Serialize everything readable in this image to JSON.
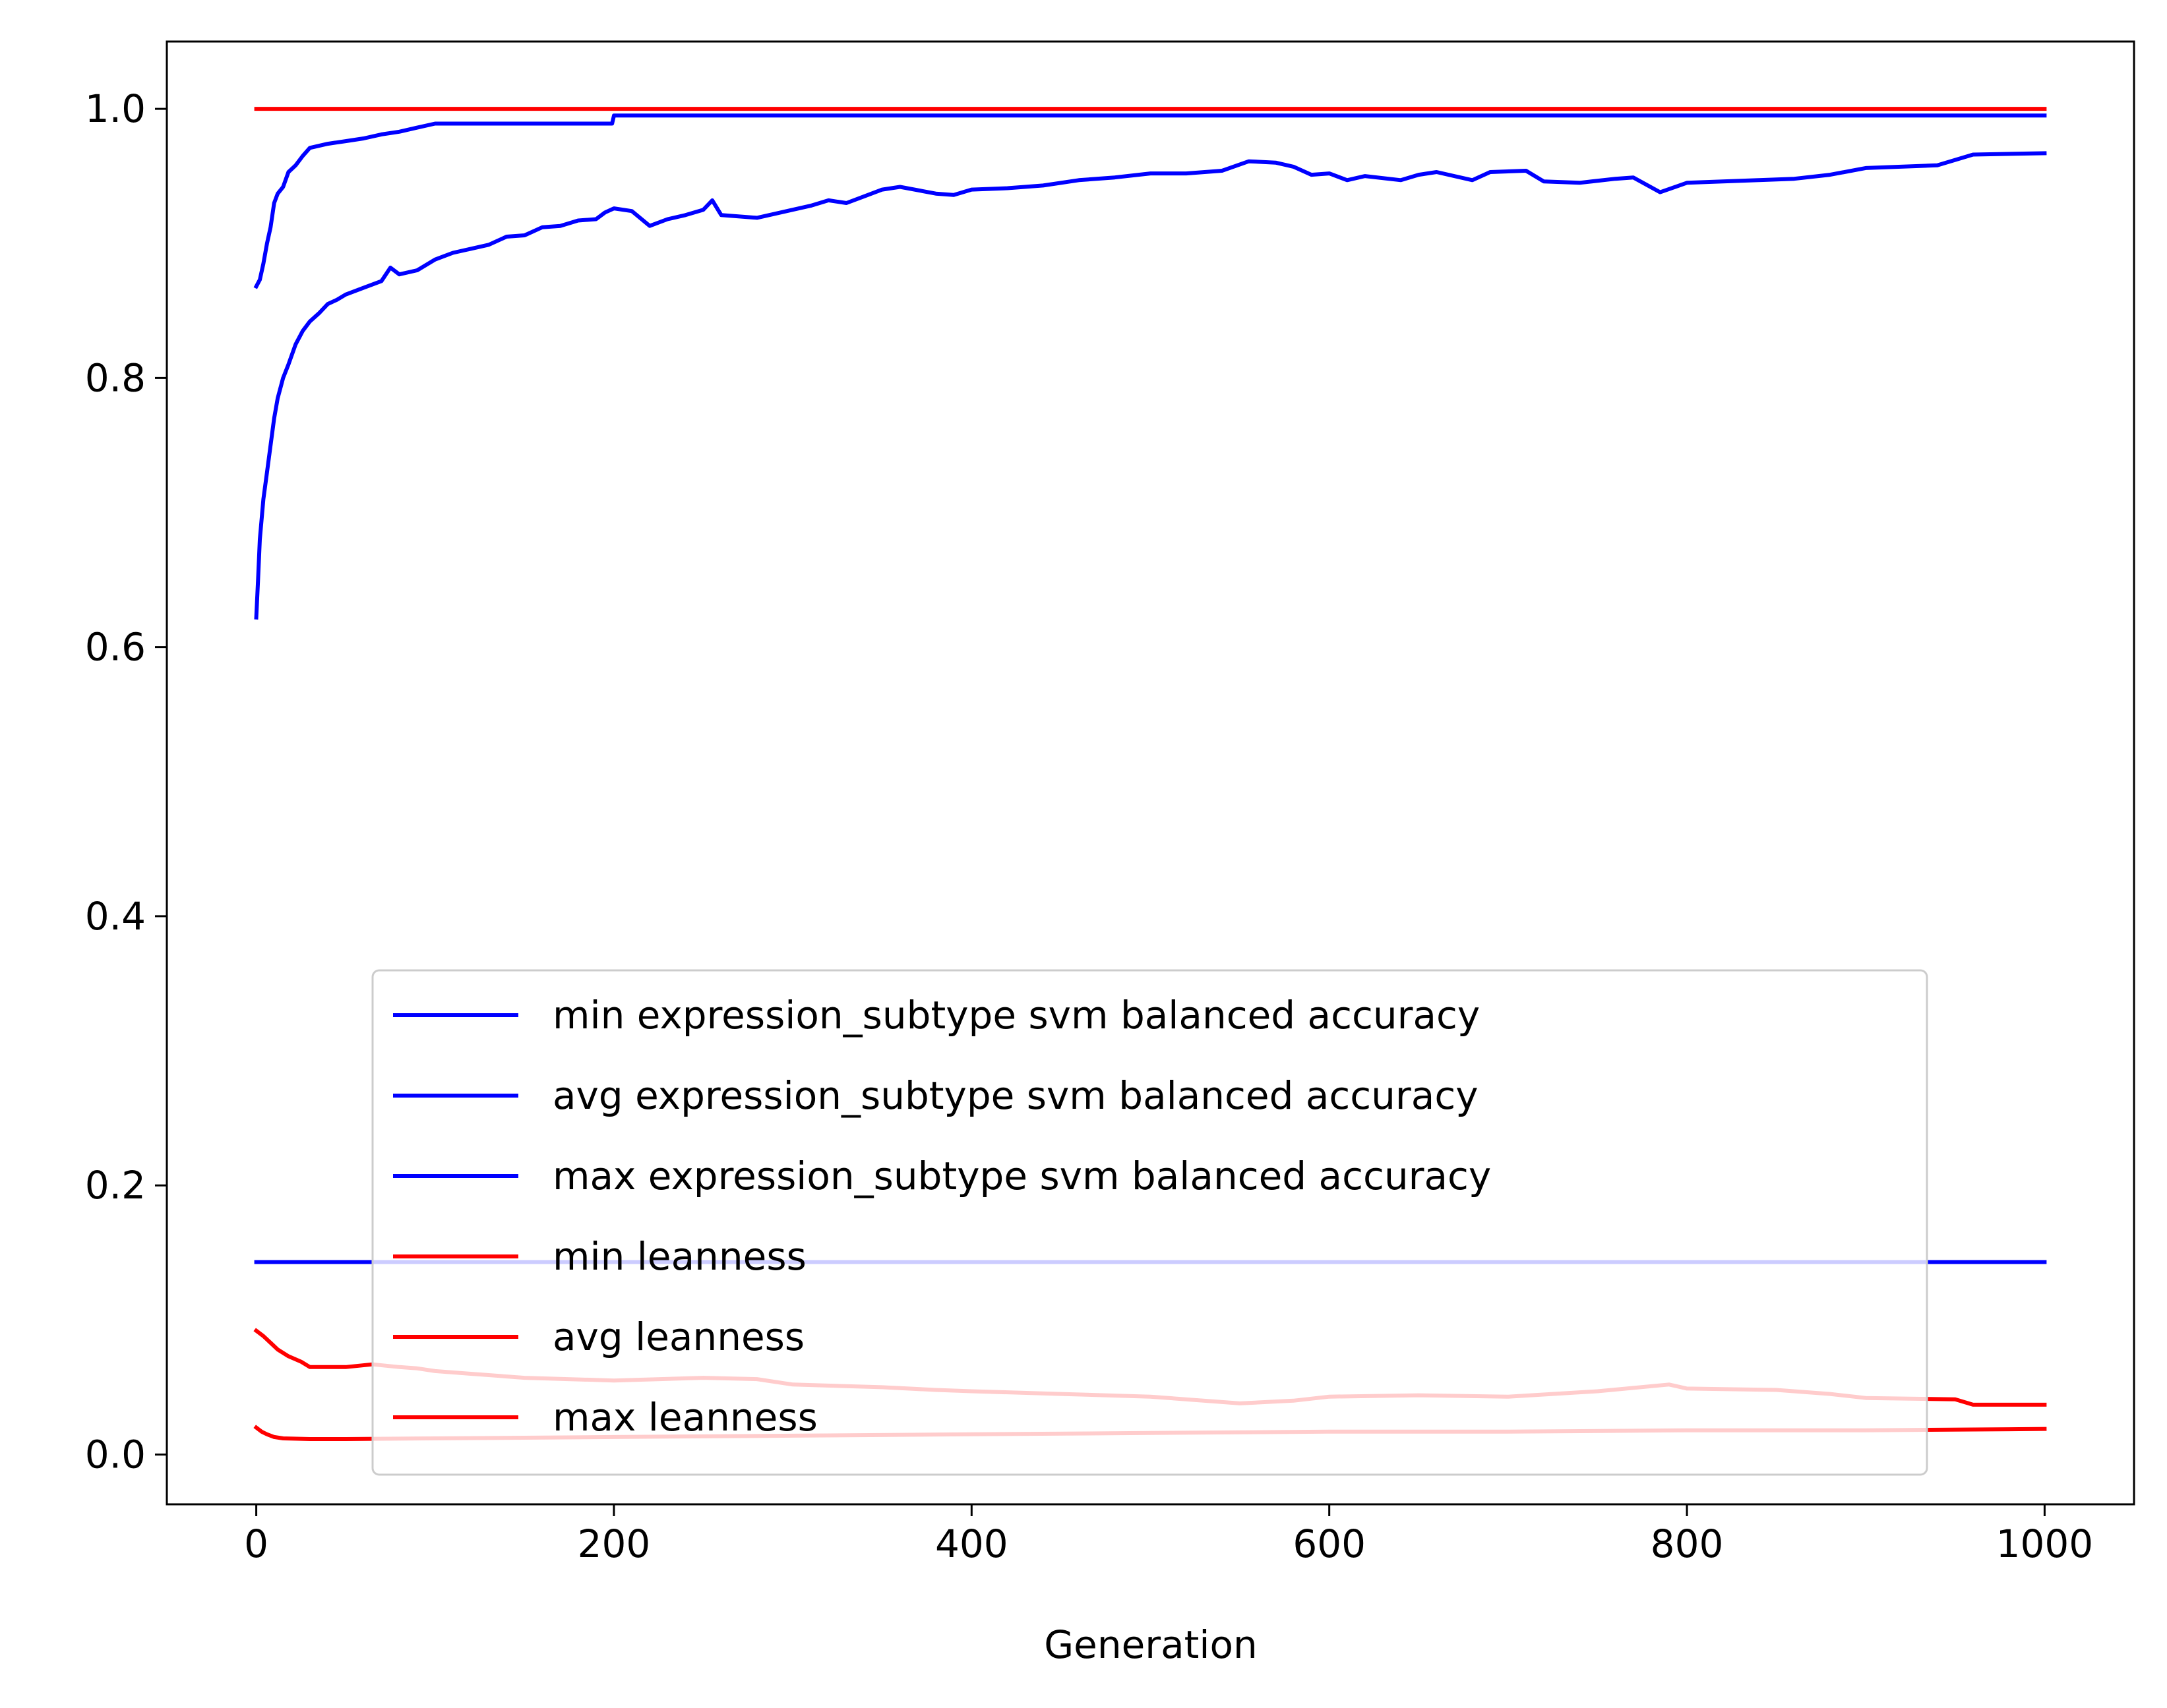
{
  "chart_data": {
    "type": "line",
    "title": "",
    "xlabel": "Generation",
    "ylabel": "",
    "xlim": [
      -50,
      1050
    ],
    "ylim": [
      -0.037,
      1.05
    ],
    "xticks": [
      0,
      200,
      400,
      600,
      800,
      1000
    ],
    "yticks": [
      0.0,
      0.2,
      0.4,
      0.6,
      0.8,
      1.0
    ],
    "xtick_labels": [
      "0",
      "200",
      "400",
      "600",
      "800",
      "1000"
    ],
    "ytick_labels": [
      "0.0",
      "0.2",
      "0.4",
      "0.6",
      "0.8",
      "1.0"
    ],
    "grid": false,
    "legend_position": "lower center",
    "series": [
      {
        "name": "min expression_subtype svm balanced accuracy",
        "color": "#0000ff",
        "points": [
          [
            0,
            0.143
          ],
          [
            1000,
            0.143
          ]
        ]
      },
      {
        "name": "avg expression_subtype svm balanced accuracy",
        "color": "#0000ff",
        "points": [
          [
            0,
            0.622
          ],
          [
            1,
            0.65
          ],
          [
            2,
            0.68
          ],
          [
            4,
            0.71
          ],
          [
            6,
            0.73
          ],
          [
            8,
            0.75
          ],
          [
            10,
            0.77
          ],
          [
            12,
            0.785
          ],
          [
            15,
            0.8
          ],
          [
            18,
            0.81
          ],
          [
            22,
            0.825
          ],
          [
            26,
            0.835
          ],
          [
            30,
            0.842
          ],
          [
            35,
            0.848
          ],
          [
            40,
            0.855
          ],
          [
            45,
            0.858
          ],
          [
            50,
            0.862
          ],
          [
            60,
            0.867
          ],
          [
            70,
            0.872
          ],
          [
            75,
            0.882
          ],
          [
            80,
            0.877
          ],
          [
            90,
            0.88
          ],
          [
            100,
            0.888
          ],
          [
            110,
            0.893
          ],
          [
            120,
            0.896
          ],
          [
            130,
            0.899
          ],
          [
            140,
            0.905
          ],
          [
            150,
            0.906
          ],
          [
            160,
            0.912
          ],
          [
            170,
            0.913
          ],
          [
            180,
            0.917
          ],
          [
            190,
            0.918
          ],
          [
            195,
            0.923
          ],
          [
            200,
            0.926
          ],
          [
            210,
            0.924
          ],
          [
            220,
            0.913
          ],
          [
            230,
            0.918
          ],
          [
            240,
            0.921
          ],
          [
            250,
            0.925
          ],
          [
            255,
            0.932
          ],
          [
            260,
            0.921
          ],
          [
            280,
            0.919
          ],
          [
            300,
            0.925
          ],
          [
            310,
            0.928
          ],
          [
            320,
            0.932
          ],
          [
            330,
            0.93
          ],
          [
            340,
            0.935
          ],
          [
            350,
            0.94
          ],
          [
            360,
            0.942
          ],
          [
            380,
            0.937
          ],
          [
            390,
            0.936
          ],
          [
            400,
            0.94
          ],
          [
            420,
            0.941
          ],
          [
            440,
            0.943
          ],
          [
            460,
            0.947
          ],
          [
            480,
            0.949
          ],
          [
            500,
            0.952
          ],
          [
            520,
            0.952
          ],
          [
            540,
            0.954
          ],
          [
            555,
            0.961
          ],
          [
            570,
            0.96
          ],
          [
            580,
            0.957
          ],
          [
            590,
            0.951
          ],
          [
            600,
            0.952
          ],
          [
            610,
            0.947
          ],
          [
            620,
            0.95
          ],
          [
            640,
            0.947
          ],
          [
            650,
            0.951
          ],
          [
            660,
            0.953
          ],
          [
            680,
            0.947
          ],
          [
            690,
            0.953
          ],
          [
            710,
            0.954
          ],
          [
            720,
            0.946
          ],
          [
            740,
            0.945
          ],
          [
            760,
            0.948
          ],
          [
            770,
            0.949
          ],
          [
            785,
            0.938
          ],
          [
            800,
            0.945
          ],
          [
            820,
            0.946
          ],
          [
            840,
            0.947
          ],
          [
            860,
            0.948
          ],
          [
            880,
            0.951
          ],
          [
            900,
            0.956
          ],
          [
            940,
            0.958
          ],
          [
            960,
            0.966
          ],
          [
            1000,
            0.967
          ]
        ]
      },
      {
        "name": "max expression_subtype svm balanced accuracy",
        "color": "#0000ff",
        "points": [
          [
            0,
            0.868
          ],
          [
            2,
            0.873
          ],
          [
            4,
            0.885
          ],
          [
            6,
            0.9
          ],
          [
            8,
            0.912
          ],
          [
            10,
            0.93
          ],
          [
            12,
            0.937
          ],
          [
            15,
            0.942
          ],
          [
            18,
            0.953
          ],
          [
            22,
            0.958
          ],
          [
            26,
            0.965
          ],
          [
            30,
            0.971
          ],
          [
            40,
            0.974
          ],
          [
            50,
            0.976
          ],
          [
            60,
            0.978
          ],
          [
            70,
            0.981
          ],
          [
            80,
            0.983
          ],
          [
            90,
            0.986
          ],
          [
            100,
            0.989
          ],
          [
            150,
            0.989
          ],
          [
            199,
            0.989
          ],
          [
            200,
            0.995
          ],
          [
            1000,
            0.995
          ]
        ]
      },
      {
        "name": "min leanness",
        "color": "#ff0000",
        "points": [
          [
            0,
            0.02
          ],
          [
            3,
            0.017
          ],
          [
            6,
            0.015
          ],
          [
            10,
            0.013
          ],
          [
            15,
            0.012
          ],
          [
            30,
            0.0115
          ],
          [
            50,
            0.0115
          ],
          [
            100,
            0.012
          ],
          [
            200,
            0.013
          ],
          [
            300,
            0.014
          ],
          [
            400,
            0.015
          ],
          [
            500,
            0.016
          ],
          [
            600,
            0.017
          ],
          [
            700,
            0.017
          ],
          [
            800,
            0.018
          ],
          [
            900,
            0.018
          ],
          [
            1000,
            0.019
          ]
        ]
      },
      {
        "name": "avg leanness",
        "color": "#ff0000",
        "points": [
          [
            0,
            0.092
          ],
          [
            4,
            0.088
          ],
          [
            8,
            0.083
          ],
          [
            12,
            0.078
          ],
          [
            18,
            0.073
          ],
          [
            25,
            0.069
          ],
          [
            30,
            0.065
          ],
          [
            50,
            0.065
          ],
          [
            65,
            0.067
          ],
          [
            80,
            0.065
          ],
          [
            90,
            0.064
          ],
          [
            100,
            0.062
          ],
          [
            120,
            0.06
          ],
          [
            150,
            0.057
          ],
          [
            200,
            0.055
          ],
          [
            250,
            0.057
          ],
          [
            280,
            0.056
          ],
          [
            300,
            0.052
          ],
          [
            350,
            0.05
          ],
          [
            380,
            0.048
          ],
          [
            400,
            0.047
          ],
          [
            450,
            0.045
          ],
          [
            500,
            0.043
          ],
          [
            550,
            0.038
          ],
          [
            580,
            0.04
          ],
          [
            600,
            0.043
          ],
          [
            650,
            0.044
          ],
          [
            700,
            0.043
          ],
          [
            750,
            0.047
          ],
          [
            790,
            0.052
          ],
          [
            800,
            0.049
          ],
          [
            850,
            0.048
          ],
          [
            880,
            0.045
          ],
          [
            900,
            0.042
          ],
          [
            950,
            0.041
          ],
          [
            960,
            0.037
          ],
          [
            1000,
            0.037
          ]
        ]
      },
      {
        "name": "max leanness",
        "color": "#ff0000",
        "points": [
          [
            0,
            1.0
          ],
          [
            1000,
            1.0
          ]
        ]
      }
    ]
  }
}
